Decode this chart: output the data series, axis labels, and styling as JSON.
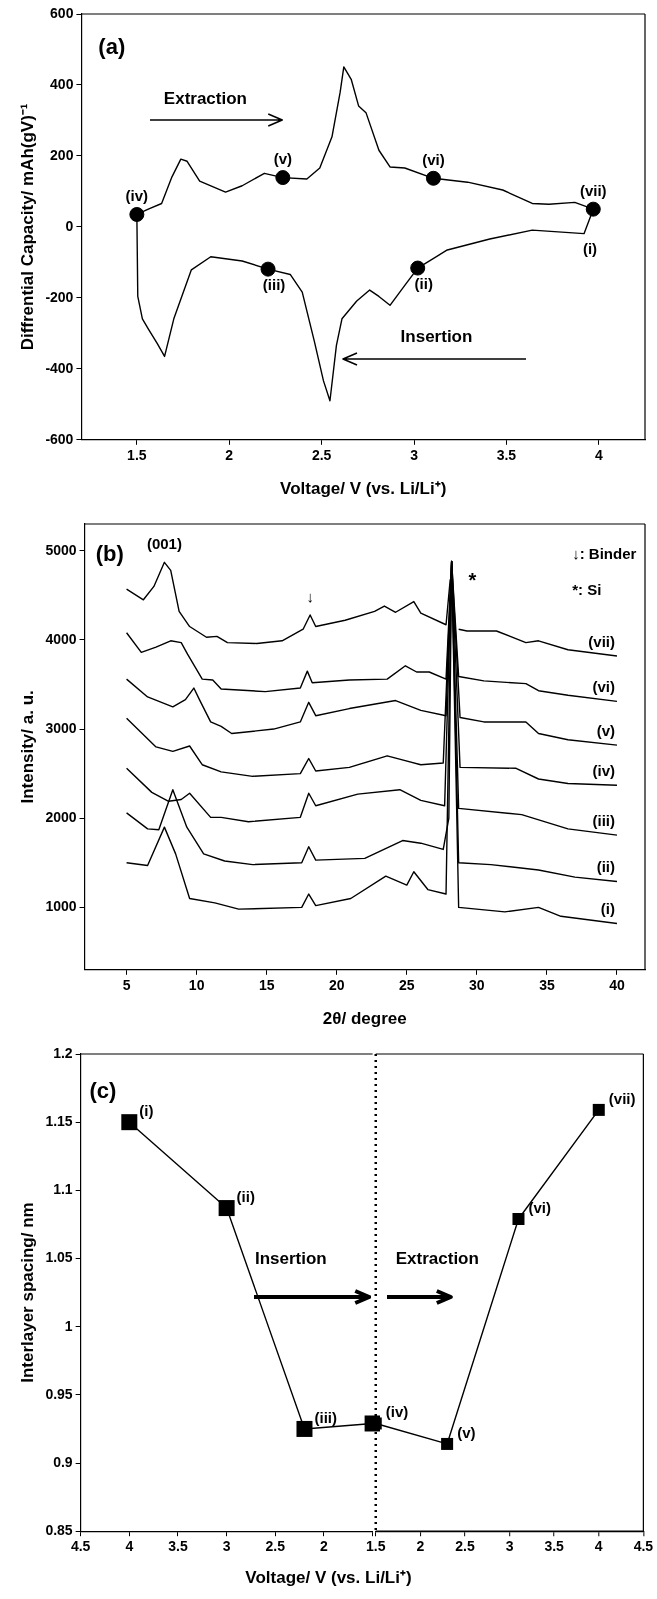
{
  "chart_data": [
    {
      "type": "line",
      "xlabel": "Voltage/ V (vs. Li/Li⁺)",
      "ylabel": "Diffrential Capacity/ mAh(gV)⁻¹",
      "xlim": [
        1.2,
        4.25
      ],
      "ylim": [
        -600,
        600
      ],
      "xticks": [
        1.5,
        2.0,
        2.5,
        3.0,
        3.5,
        4.0
      ],
      "yticks": [
        -600,
        -400,
        -200,
        0,
        200,
        400,
        600
      ],
      "grid": false,
      "series": [
        {
          "type": "line",
          "marker": "none",
          "color": "#000000",
          "x": [
            1.5,
            1.565,
            1.634,
            1.69,
            1.738,
            1.772,
            1.84,
            1.98,
            2.07,
            2.19,
            2.29,
            2.42,
            2.49,
            2.556,
            2.6,
            2.62,
            2.66,
            2.7,
            2.74,
            2.81,
            2.87,
            2.95,
            3.105,
            3.29,
            3.48,
            3.64,
            3.73,
            3.87,
            3.97
          ],
          "values": [
            35,
            51,
            66,
            141,
            191,
            185,
            129,
            98,
            116,
            151,
            139,
            135,
            166,
            254,
            379,
            451,
            416,
            341,
            322,
            216,
            169,
            166,
            137,
            126,
            104,
            66,
            64,
            69,
            50
          ]
        },
        {
          "type": "line",
          "marker": "none",
          "color": "#000000",
          "x": [
            1.5,
            1.505,
            1.53,
            1.565,
            1.61,
            1.65,
            1.7,
            1.795,
            1.9,
            2.07,
            2.21,
            2.33,
            2.395,
            2.46,
            2.51,
            2.545,
            2.58,
            2.61,
            2.69,
            2.76,
            2.81,
            2.87,
            2.95,
            3.02,
            3.18,
            3.41,
            3.64,
            3.92,
            3.97
          ],
          "values": [
            35,
            -196,
            -259,
            -290,
            -328,
            -365,
            -259,
            -121,
            -84,
            -96,
            -119,
            -134,
            -184,
            -321,
            -434,
            -490,
            -334,
            -259,
            -209,
            -178,
            -196,
            -221,
            -165,
            -116,
            -65,
            -34,
            -9,
            -19,
            50
          ]
        },
        {
          "type": "scatter",
          "marker": "circle",
          "color": "#000000",
          "x": [
            1.5,
            2.29,
            3.105,
            3.97,
            3.02,
            2.21
          ],
          "values": [
            35,
            139,
            137,
            50,
            -116,
            -119
          ]
        }
      ],
      "annotations": [
        "(a)",
        "Extraction",
        "Insertion",
        {
          "text": "(iv)",
          "x": 1.5,
          "y": 35
        },
        {
          "text": "(v)",
          "x": 2.29,
          "y": 139
        },
        {
          "text": "(vi)",
          "x": 3.105,
          "y": 137
        },
        {
          "text": "(vii)",
          "x": 3.97,
          "y": 50
        },
        {
          "text": "(i)",
          "x": 3.92,
          "y": -19
        },
        {
          "text": "(ii)",
          "x": 3.02,
          "y": -116
        },
        {
          "text": "(iii)",
          "x": 2.21,
          "y": -119
        }
      ]
    },
    {
      "type": "line",
      "xlabel": "2θ/ degree",
      "ylabel": "Intensity/ a. u.",
      "xlim": [
        2,
        42
      ],
      "ylim": [
        300,
        5300
      ],
      "xticks": [
        5,
        10,
        15,
        20,
        25,
        30,
        35,
        40
      ],
      "yticks": [
        1000,
        2000,
        3000,
        4000,
        5000
      ],
      "grid": false,
      "marker": "none",
      "series": [
        {
          "name": "(i)",
          "color": "#000000",
          "x": [
            5.0,
            6.5,
            7.7,
            8.5,
            9.5,
            11.3,
            13,
            17.5,
            18,
            18.5,
            21,
            23.5,
            25,
            25.5,
            26.5,
            27.8,
            28.2,
            28.7,
            32,
            34.4,
            36,
            40
          ],
          "values": [
            1500,
            1470,
            1900,
            1600,
            1100,
            1050,
            980,
            1000,
            1150,
            1020,
            1100,
            1350,
            1250,
            1400,
            1200,
            1150,
            4880,
            1000,
            950,
            1000,
            900,
            820
          ]
        },
        {
          "name": "(ii)",
          "color": "#000000",
          "x": [
            5.0,
            6.5,
            7.3,
            8.3,
            9.3,
            10.5,
            12,
            14,
            17.5,
            18,
            18.5,
            22,
            24.7,
            26,
            27.6,
            28.0,
            28.2,
            28.7,
            31,
            34.4,
            37,
            40
          ],
          "values": [
            2060,
            1880,
            1870,
            2320,
            1900,
            1600,
            1520,
            1480,
            1500,
            1680,
            1530,
            1550,
            1750,
            1720,
            1650,
            2000,
            4880,
            1500,
            1480,
            1420,
            1340,
            1290
          ]
        },
        {
          "name": "(iii)",
          "color": "#000000",
          "x": [
            5.0,
            6.8,
            8.0,
            8.9,
            9.5,
            11.0,
            11.75,
            13.7,
            17.4,
            18.0,
            18.5,
            21.5,
            24.5,
            26.0,
            27.7,
            28.2,
            28.7,
            33.2,
            36.5,
            40
          ],
          "values": [
            2560,
            2290,
            2190,
            2210,
            2280,
            2010,
            2010,
            1960,
            2010,
            2280,
            2140,
            2270,
            2320,
            2200,
            2140,
            4880,
            2110,
            2040,
            1880,
            1810
          ]
        },
        {
          "name": "(iv)",
          "color": "#000000",
          "x": [
            5.0,
            7.1,
            8.3,
            9.5,
            10.4,
            11.75,
            14.0,
            17.4,
            18.0,
            18.5,
            20.9,
            23.6,
            26.0,
            27.6,
            28.2,
            28.8,
            32.8,
            34.4,
            36.5,
            40
          ],
          "values": [
            3120,
            2800,
            2750,
            2810,
            2600,
            2520,
            2470,
            2500,
            2670,
            2530,
            2570,
            2700,
            2600,
            2620,
            4880,
            2570,
            2560,
            2440,
            2390,
            2370
          ]
        },
        {
          "name": "(v)",
          "color": "#000000",
          "x": [
            5.0,
            6.5,
            8.3,
            9.2,
            9.8,
            10.2,
            11.0,
            11.75,
            12.5,
            15.5,
            17.4,
            18.0,
            18.5,
            20.9,
            24.2,
            26.0,
            27.8,
            28.2,
            28.8,
            30.5,
            33.5,
            34.4,
            36.5,
            40
          ],
          "values": [
            3560,
            3360,
            3250,
            3330,
            3460,
            3330,
            3080,
            3030,
            2950,
            3000,
            3080,
            3300,
            3150,
            3230,
            3320,
            3210,
            3150,
            4880,
            3130,
            3080,
            3080,
            2950,
            2880,
            2820
          ]
        },
        {
          "name": "(vi)",
          "color": "#000000",
          "x": [
            5.0,
            6.05,
            7.1,
            8.15,
            8.9,
            9.35,
            10.4,
            11.15,
            11.75,
            14.9,
            17.4,
            17.9,
            18.25,
            20.9,
            23.6,
            24.9,
            25.7,
            26.6,
            27.8,
            28.2,
            28.7,
            30.5,
            33.5,
            34.4,
            36.5,
            40
          ],
          "values": [
            4080,
            3860,
            3920,
            3990,
            3970,
            3840,
            3560,
            3550,
            3450,
            3420,
            3460,
            3650,
            3520,
            3550,
            3560,
            3710,
            3640,
            3640,
            3560,
            4880,
            3590,
            3540,
            3510,
            3430,
            3380,
            3310
          ]
        },
        {
          "name": "(vii)",
          "color": "#000000",
          "x": [
            5.0,
            6.2,
            6.95,
            7.7,
            8.15,
            8.75,
            9.5,
            10.7,
            11.45,
            12.2,
            14.3,
            16.1,
            17.6,
            18.1,
            18.5,
            20.6,
            22.7,
            23.4,
            24.2,
            25.5,
            26.0,
            27.8,
            28.1,
            28.2,
            28.4,
            28.7,
            29.3,
            31.4,
            33.5,
            34.4,
            36.5,
            40
          ],
          "values": [
            4570,
            4450,
            4600,
            4870,
            4780,
            4320,
            4150,
            4030,
            4040,
            3970,
            3960,
            3990,
            4120,
            4280,
            4150,
            4220,
            4320,
            4380,
            4310,
            4430,
            4300,
            4170,
            4680,
            null,
            null,
            4120,
            4100,
            4100,
            3970,
            3990,
            3890,
            3820
          ]
        }
      ],
      "annotations": [
        "(b)",
        "↓: Binder",
        "*: Si",
        "*",
        {
          "text": "(001)",
          "x": 7.7,
          "y": 4870
        },
        {
          "text": "↓",
          "x": 18.1,
          "y": 4280
        }
      ]
    },
    {
      "type": "line",
      "xlabel": "Voltage/ V (vs. Li/Li⁺)",
      "ylabel": "Interlayer spacing/ nm",
      "xlim": [
        4.5,
        1.5
      ],
      "ylim": [
        0.85,
        1.2
      ],
      "xticks": [
        4.5,
        4.0,
        3.5,
        3.0,
        2.5,
        2.0,
        {
          "value": 1.5,
          "label": null
        }
      ],
      "yticks": [
        0.85,
        0.9,
        0.95,
        1.0,
        1.05,
        1.1,
        1.15,
        1.2
      ],
      "grid": false,
      "marker": "square",
      "series": [
        {
          "color": "#000000",
          "x": [
            4.0,
            3.0,
            2.2,
            1.5
          ],
          "values": [
            1.15,
            1.087,
            0.925,
            0.929
          ]
        }
      ],
      "annotations": [
        "(c)",
        "Insertion",
        {
          "text": "(i)",
          "x": 4.0,
          "y": 1.15
        },
        {
          "text": "(ii)",
          "x": 3.0,
          "y": 1.087
        },
        {
          "text": "(iii)",
          "x": 2.2,
          "y": 0.925
        }
      ]
    },
    {
      "type": "line",
      "xlim": [
        1.5,
        4.5
      ],
      "ylim": [
        0.85,
        1.2
      ],
      "xticks": [
        1.5,
        2.0,
        2.5,
        3.0,
        3.5,
        4.0,
        4.5
      ],
      "tick_labels": "x",
      "grid": false,
      "marker": "square",
      "series": [
        {
          "color": "#000000",
          "x": [
            1.5,
            2.3,
            3.1,
            4.0
          ],
          "values": [
            0.929,
            0.914,
            1.079,
            1.159
          ]
        }
      ],
      "ref_lines": [
        {
          "axis": "x",
          "value": 1.5,
          "line_style": "dotted",
          "color": "#000000"
        }
      ],
      "annotations": [
        "Extraction",
        {
          "text": "(iv)",
          "x": 1.5,
          "y": 0.929
        },
        {
          "text": "(v)",
          "x": 2.3,
          "y": 0.914
        },
        {
          "text": "(vi)",
          "x": 3.1,
          "y": 1.079
        },
        {
          "text": "(vii)",
          "x": 4.0,
          "y": 1.159
        }
      ]
    }
  ]
}
